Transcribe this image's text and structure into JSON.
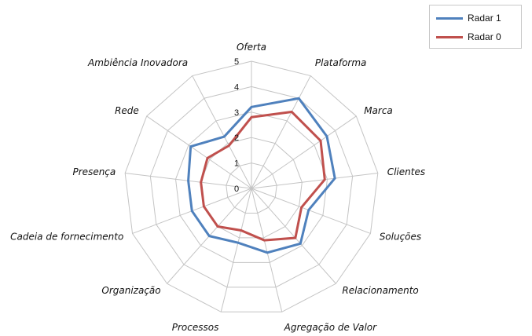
{
  "chart_data": {
    "type": "radar",
    "title": "",
    "categories": [
      "Oferta",
      "Plataforma",
      "Marca",
      "Clientes",
      "Soluções",
      "Relacionamento",
      "Agregação de Valor",
      "Processos",
      "Organização",
      "Cadeia de fornecimento",
      "Presença",
      "Rede",
      "Ambiência Inovadora"
    ],
    "rlim": [
      0,
      5
    ],
    "ticks": [
      "0",
      "1",
      "2",
      "3",
      "4",
      "5"
    ],
    "grid": true,
    "legend_position": "top-right",
    "series": [
      {
        "name": "Radar 1",
        "color": "#4f81bd",
        "values": [
          3.2,
          4.0,
          3.6,
          3.3,
          2.4,
          2.9,
          2.6,
          2.2,
          2.5,
          2.5,
          2.5,
          2.9,
          2.3
        ]
      },
      {
        "name": "Radar 0",
        "color": "#c0504d",
        "values": [
          2.8,
          3.4,
          3.3,
          2.9,
          2.1,
          2.6,
          2.1,
          1.7,
          2.0,
          2.0,
          2.0,
          2.1,
          1.9
        ]
      }
    ]
  }
}
